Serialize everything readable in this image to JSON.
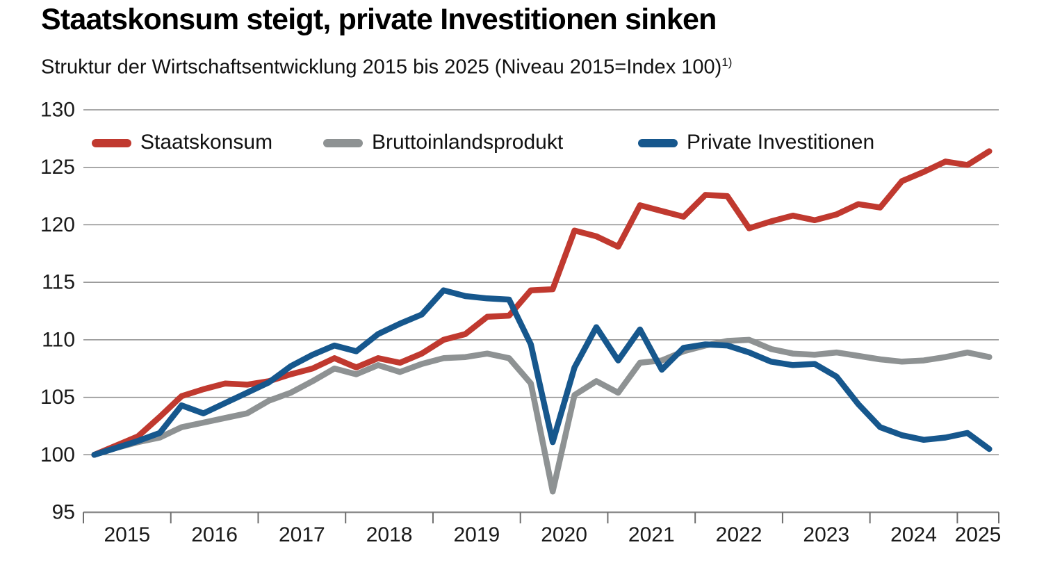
{
  "page": {
    "title": "Staatskonsum steigt, private Investitionen sinken",
    "subtitle": "Struktur der Wirtschaftsentwicklung 2015 bis 2025 (Niveau 2015=Index 100)",
    "footnote_marker": "1)"
  },
  "chart_data": {
    "type": "line",
    "title": "Staatskonsum steigt, private Investitionen sinken",
    "subtitle": "Struktur der Wirtschaftsentwicklung 2015 bis 2025 (Niveau 2015=Index 100)1)",
    "legend_position": "top-left-inside",
    "grid": "horizontal",
    "quarters": [
      "2015 Q1",
      "2015 Q2",
      "2015 Q3",
      "2015 Q4",
      "2016 Q1",
      "2016 Q2",
      "2016 Q3",
      "2016 Q4",
      "2017 Q1",
      "2017 Q2",
      "2017 Q3",
      "2017 Q4",
      "2018 Q1",
      "2018 Q2",
      "2018 Q3",
      "2018 Q4",
      "2019 Q1",
      "2019 Q2",
      "2019 Q3",
      "2019 Q4",
      "2020 Q1",
      "2020 Q2",
      "2020 Q3",
      "2020 Q4",
      "2021 Q1",
      "2021 Q2",
      "2021 Q3",
      "2021 Q4",
      "2022 Q1",
      "2022 Q2",
      "2022 Q3",
      "2022 Q4",
      "2023 Q1",
      "2023 Q2",
      "2023 Q3",
      "2023 Q4",
      "2024 Q1",
      "2024 Q2",
      "2024 Q3",
      "2024 Q4",
      "2025 Q1",
      "2025 Q2"
    ],
    "axes": {
      "ylim": [
        95,
        130
      ],
      "yticks": [
        95,
        100,
        105,
        110,
        115,
        120,
        125,
        130
      ],
      "xticklabels": [
        "2015",
        "2016",
        "2017",
        "2018",
        "2019",
        "2020",
        "2021",
        "2022",
        "2023",
        "2024",
        "2025"
      ]
    },
    "series": [
      {
        "id": "staatskonsum",
        "name": "Staatskonsum",
        "color": "#c0392f",
        "values": [
          100.0,
          100.8,
          101.6,
          103.3,
          105.1,
          105.7,
          106.2,
          106.1,
          106.4,
          107.0,
          107.5,
          108.4,
          107.6,
          108.4,
          108.0,
          108.8,
          110.0,
          110.5,
          112.0,
          112.1,
          114.3,
          114.4,
          119.5,
          119.0,
          118.1,
          121.7,
          121.2,
          120.7,
          122.6,
          122.5,
          119.7,
          120.3,
          120.8,
          120.4,
          120.9,
          121.8,
          121.5,
          123.8,
          124.6,
          125.5,
          125.2,
          126.4
        ]
      },
      {
        "id": "bruttoinlandsprodukt",
        "name": "Bruttoinlandsprodukt",
        "color": "#8e9293",
        "values": [
          100.0,
          100.6,
          101.1,
          101.5,
          102.4,
          102.8,
          103.2,
          103.6,
          104.7,
          105.4,
          106.4,
          107.5,
          107.0,
          107.8,
          107.2,
          107.9,
          108.4,
          108.5,
          108.8,
          108.4,
          106.2,
          96.8,
          105.2,
          106.4,
          105.4,
          108.0,
          108.2,
          109.0,
          109.5,
          109.9,
          110.0,
          109.2,
          108.8,
          108.7,
          108.9,
          108.6,
          108.3,
          108.1,
          108.2,
          108.5,
          108.9,
          108.5
        ]
      },
      {
        "id": "private-investitionen",
        "name": "Private Investitionen",
        "color": "#16578d",
        "values": [
          100.0,
          100.6,
          101.2,
          101.9,
          104.3,
          103.6,
          104.5,
          105.4,
          106.3,
          107.7,
          108.7,
          109.5,
          109.0,
          110.5,
          111.4,
          112.2,
          114.3,
          113.8,
          113.6,
          113.5,
          109.6,
          101.1,
          107.6,
          111.1,
          108.2,
          110.9,
          107.4,
          109.3,
          109.6,
          109.5,
          108.9,
          108.1,
          107.8,
          107.9,
          106.8,
          104.4,
          102.4,
          101.7,
          101.3,
          101.5,
          101.9,
          100.5
        ]
      }
    ]
  }
}
